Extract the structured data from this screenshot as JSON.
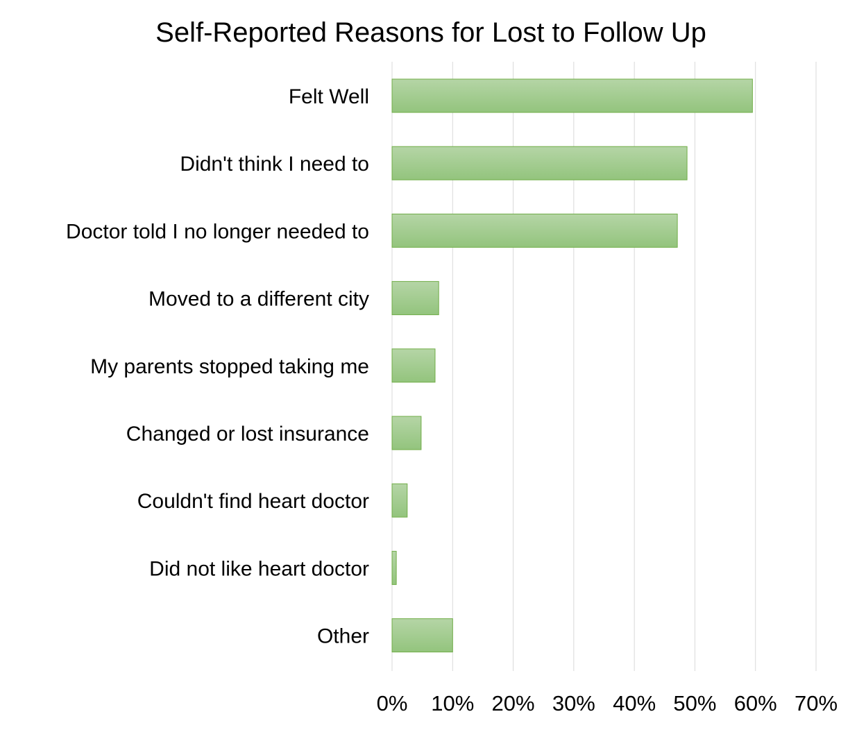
{
  "chart_data": {
    "type": "bar",
    "orientation": "horizontal",
    "title": "Self-Reported Reasons for Lost to Follow Up",
    "categories": [
      "Felt Well",
      "Didn't think I need to",
      "Doctor told I no longer needed to",
      "Moved to a different city",
      "My parents stopped taking me",
      "Changed or lost insurance",
      "Couldn't find heart doctor",
      "Did not like heart doctor",
      "Other"
    ],
    "values": [
      0.595,
      0.487,
      0.471,
      0.077,
      0.071,
      0.048,
      0.025,
      0.007,
      0.1
    ],
    "xlim": [
      0,
      0.7
    ],
    "x_ticks": [
      0,
      0.1,
      0.2,
      0.3,
      0.4,
      0.5,
      0.6,
      0.7
    ],
    "x_tick_labels": [
      "0%",
      "10%",
      "20%",
      "30%",
      "40%",
      "50%",
      "60%",
      "70%"
    ],
    "xlabel": "",
    "ylabel": "",
    "grid": "vertical",
    "legend": "none",
    "colors": {
      "bar_top": "#b5d5a6",
      "bar_bottom": "#93c47d",
      "bar_border": "#70ad47",
      "grid": "#d9d9d9"
    }
  }
}
